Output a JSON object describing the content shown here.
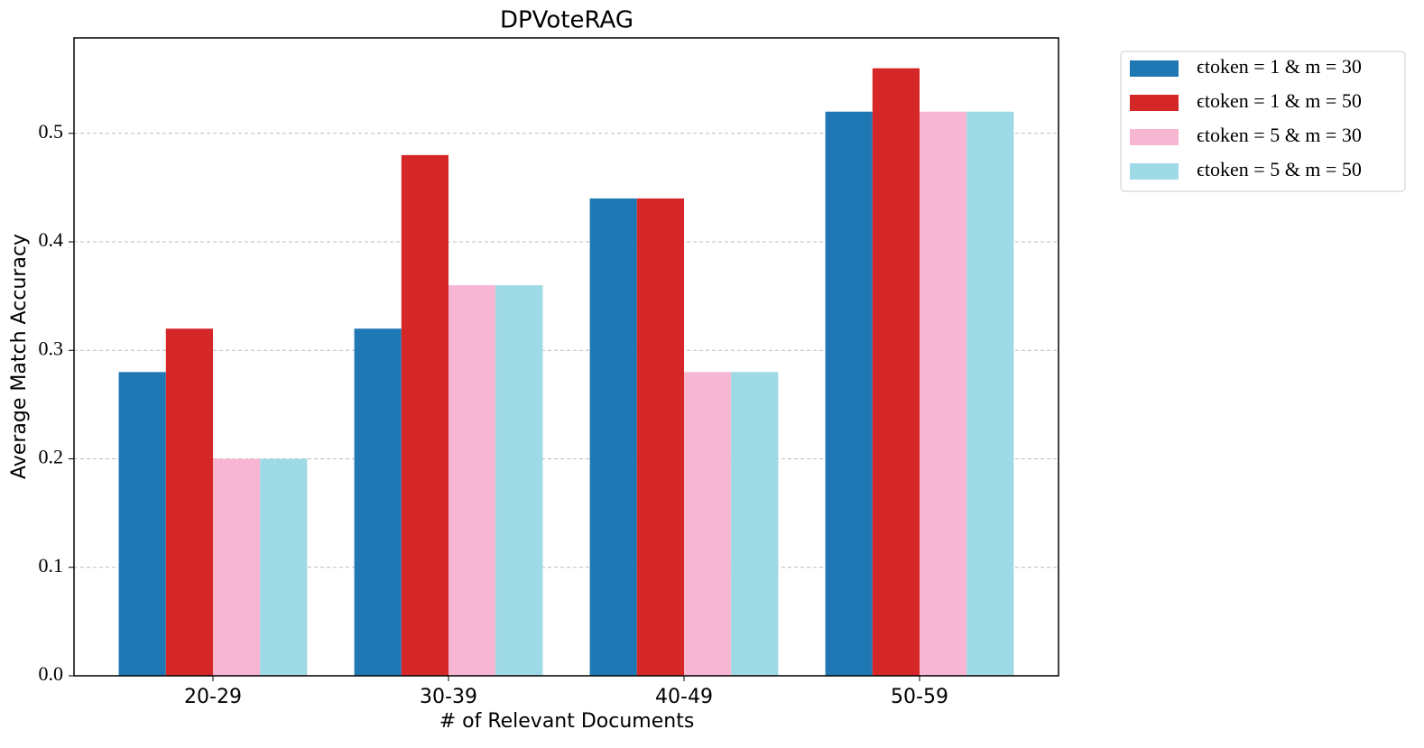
{
  "chart_data": {
    "type": "bar",
    "title": "DPVoteRAG",
    "x_label": "# of Relevant Documents",
    "y_label": "Average Match Accuracy",
    "categories": [
      "20-29",
      "30-39",
      "40-49",
      "50-59"
    ],
    "series": [
      {
        "name": "ϵtoken = 1 & m = 30",
        "color": "#1f77b4",
        "values": [
          0.28,
          0.32,
          0.44,
          0.52
        ]
      },
      {
        "name": "ϵtoken = 1 & m = 50",
        "color": "#d62728",
        "values": [
          0.32,
          0.48,
          0.44,
          0.56
        ]
      },
      {
        "name": "ϵtoken = 5 & m = 30",
        "color": "#f7b6d2",
        "values": [
          0.2,
          0.36,
          0.28,
          0.52
        ]
      },
      {
        "name": "ϵtoken = 5 & m = 50",
        "color": "#9edae5",
        "values": [
          0.2,
          0.36,
          0.28,
          0.52
        ]
      }
    ],
    "ylim": [
      0,
      0.588
    ],
    "yticks": [
      {
        "value": 0,
        "label": "0.0"
      },
      0.1,
      0.2,
      0.3,
      0.4,
      0.5
    ],
    "grid": true,
    "legend": "outside-upper-right"
  }
}
